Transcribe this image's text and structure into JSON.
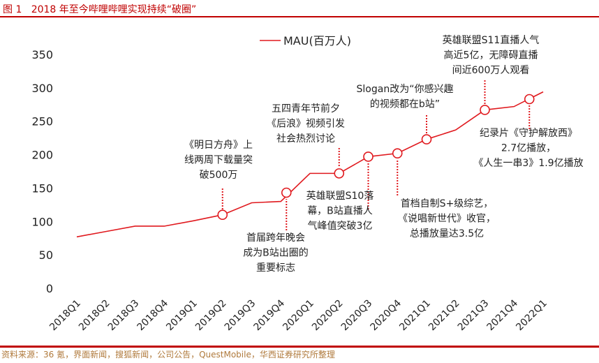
{
  "header": {
    "title": "图 1   2018 年至今哔哩哔哩实现持续“破圈”"
  },
  "footer": {
    "source": "资料来源：36 氪，界面新闻，搜狐新闻，公司公告，QuestMobile，华西证券研究所整理"
  },
  "colors": {
    "accent": "#c00000",
    "line": "#e0191e",
    "source_text": "#b07a3c"
  },
  "chart_data": {
    "type": "line",
    "title": "",
    "xlabel": "",
    "ylabel": "",
    "ylim": [
      0,
      350
    ],
    "yticks": [
      0,
      50,
      100,
      150,
      200,
      250,
      300,
      350
    ],
    "grid": false,
    "legend_placement": "top-center",
    "categories": [
      "2018Q1",
      "2018Q2",
      "2018Q3",
      "2018Q4",
      "2019Q1",
      "2019Q2",
      "2019Q3",
      "2019Q4",
      "2020Q1",
      "2020Q2",
      "2020Q3",
      "2020Q4",
      "2021Q1",
      "2021Q2",
      "2021Q3",
      "2021Q4",
      "2022Q1"
    ],
    "series": [
      {
        "name": "MAU(百万人)",
        "values": [
          77,
          85,
          93,
          93,
          101,
          110,
          128,
          130,
          172,
          172,
          197,
          202,
          223,
          237,
          267,
          272,
          294
        ]
      }
    ],
    "annotations": [
      {
        "category": "2019Q2",
        "lines": [
          "《明日方舟》上",
          "线两周下载量突",
          "破500万"
        ]
      },
      {
        "category": "2019Q4",
        "lines": [
          "首届跨年晚会",
          "成为B站出圈的",
          "重要标志"
        ]
      },
      {
        "category": "2020Q2",
        "lines": [
          "五四青年节前夕",
          "《后浪》视频引发",
          "社会热烈讨论"
        ]
      },
      {
        "category": "2020Q3",
        "lines": [
          "英雄联盟S10落",
          "幕，B站直播人",
          "气峰值突破3亿"
        ]
      },
      {
        "category": "2020Q4",
        "lines": [
          "首档自制S+级综艺，",
          "《说唱新世代》收官，",
          "总播放量达3.5亿"
        ]
      },
      {
        "category": "2021Q1",
        "lines": [
          "Slogan改为“你感兴趣",
          "的视频都在b站”"
        ]
      },
      {
        "category": "2021Q3",
        "lines": [
          "英雄联盟S11直播人气",
          "高近5亿，无障碍直播",
          "间近600万人观看"
        ]
      },
      {
        "category": "2021Q4",
        "lines": [
          "纪录片《守护解放西》",
          "2.7亿播放，",
          "《人生一串3》1.9亿播放"
        ]
      }
    ]
  }
}
